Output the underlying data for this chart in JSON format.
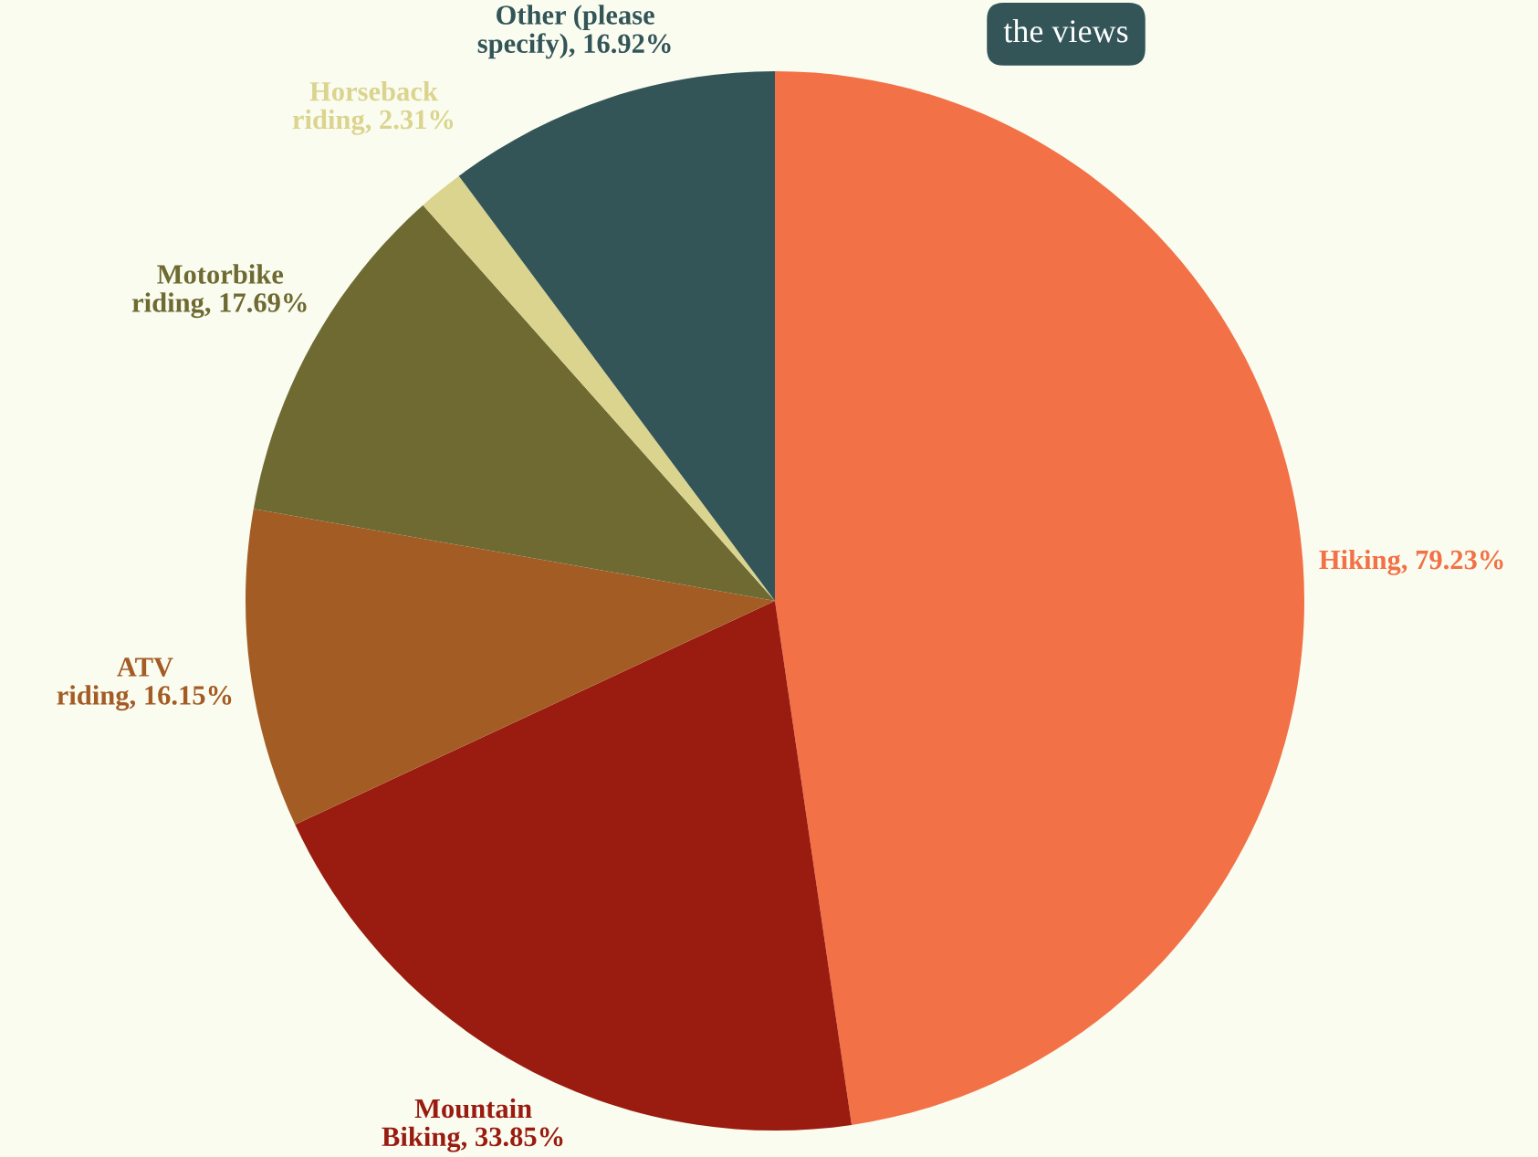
{
  "chart_data": {
    "type": "pie",
    "categories": [
      "Hiking",
      "Mountain Biking",
      "ATV riding",
      "Motorbike riding",
      "Horseback riding",
      "Other (please specify)"
    ],
    "values": [
      79.23,
      33.85,
      16.15,
      17.69,
      2.31,
      16.92
    ],
    "value_labels": [
      "79.23%",
      "33.85%",
      "16.15%",
      "17.69%",
      "2.31%",
      "16.92%"
    ],
    "colors": [
      "#f27146",
      "#9a1b10",
      "#a45c25",
      "#6e6a32",
      "#dbd48e",
      "#335558"
    ],
    "annotations": [
      "the views"
    ]
  }
}
